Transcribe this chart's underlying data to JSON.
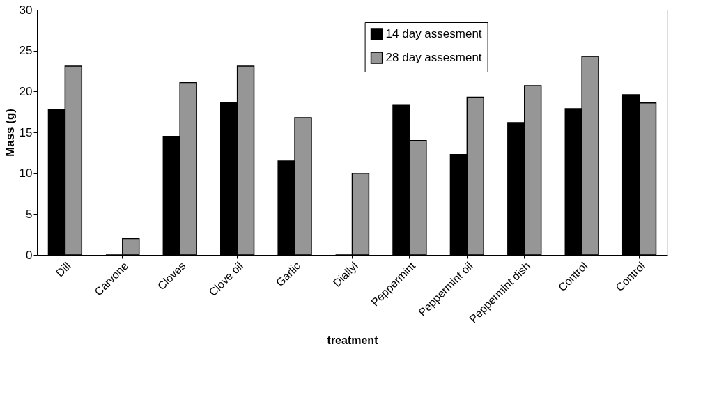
{
  "chart_data": {
    "type": "bar",
    "xlabel": "treatment",
    "ylabel": "Mass (g)",
    "categories": [
      "Dill",
      "Carvone",
      "Cloves",
      "Clove oil",
      "Garlic",
      "Diallyl",
      "Peppermint",
      "Peppermint oil",
      "Peppermint dish",
      "Control",
      "Control"
    ],
    "series": [
      {
        "name": "14 day assesment",
        "color": "#000000",
        "values": [
          17.8,
          0,
          14.5,
          18.6,
          11.5,
          0,
          18.3,
          12.3,
          16.2,
          17.9,
          19.6
        ]
      },
      {
        "name": "28 day assesment",
        "color": "#969696",
        "values": [
          23.1,
          2.0,
          21.1,
          23.1,
          16.8,
          10.0,
          14.0,
          19.3,
          20.7,
          24.3,
          18.6
        ]
      }
    ],
    "ylim": [
      0,
      30
    ],
    "yticks": [
      0,
      5,
      10,
      15,
      20,
      25,
      30
    ],
    "grid": false,
    "legend": "top"
  }
}
